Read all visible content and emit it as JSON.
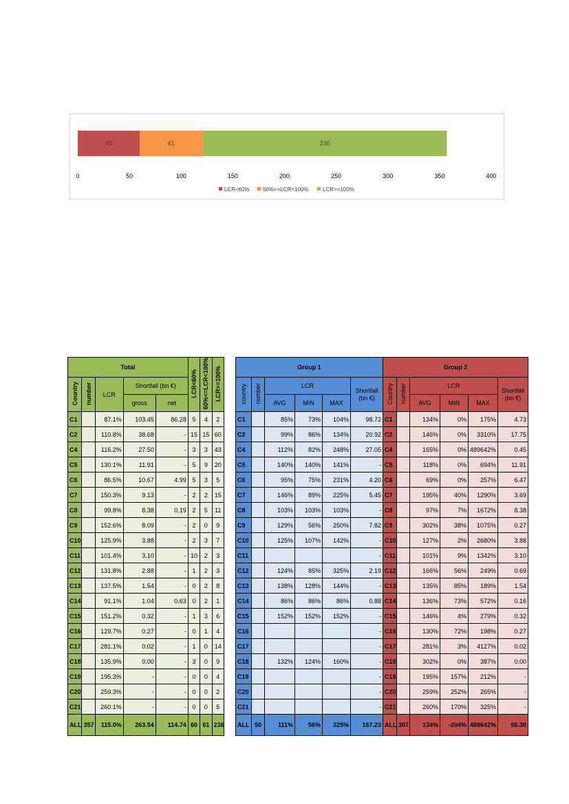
{
  "chart_data": {
    "type": "bar",
    "orientation": "horizontal",
    "stacked": true,
    "series": [
      {
        "name": "LCR<60%",
        "values": [
          60
        ],
        "color": "#c0504d"
      },
      {
        "name": "60%<=LCR<100%",
        "values": [
          61
        ],
        "color": "#f79646"
      },
      {
        "name": "LCR>=100%",
        "values": [
          236
        ],
        "color": "#9bbb59"
      }
    ],
    "xlim": [
      0,
      400
    ],
    "xticks": [
      "0",
      "50",
      "100",
      "150",
      "200",
      "250",
      "300",
      "350",
      "400"
    ],
    "legend_position": "bottom",
    "grid": false
  },
  "total_table": {
    "title": "Total",
    "headers": {
      "country": "Country",
      "number": "number",
      "lcr": "LCR",
      "shortfall": "Shortfall (bn €)",
      "gross": "gross",
      "net": "net",
      "lt60": "LCR<60%",
      "mid": "60%<=LCR<100%",
      "ge100": "LCR>=100%"
    },
    "rows": [
      [
        "C1",
        "",
        "87.1%",
        "103.45",
        "86.28",
        "5",
        "4",
        "2"
      ],
      [
        "C2",
        "",
        "110.8%",
        "38.68",
        "-",
        "15",
        "15",
        "60"
      ],
      [
        "C4",
        "",
        "116.2%",
        "27.50",
        "-",
        "3",
        "3",
        "43"
      ],
      [
        "C5",
        "",
        "130.1%",
        "11.91",
        "-",
        "5",
        "9",
        "20"
      ],
      [
        "C6",
        "",
        "86.5%",
        "10.67",
        "4.99",
        "5",
        "3",
        "5"
      ],
      [
        "C7",
        "",
        "150.3%",
        "9.13",
        "-",
        "2",
        "2",
        "15"
      ],
      [
        "C8",
        "",
        "99.8%",
        "8.38",
        "0.19",
        "2",
        "5",
        "11"
      ],
      [
        "C9",
        "",
        "152.6%",
        "8.09",
        "-",
        "2",
        "0",
        "9"
      ],
      [
        "C10",
        "",
        "125.9%",
        "3.88",
        "-",
        "2",
        "3",
        "7"
      ],
      [
        "C11",
        "",
        "101.4%",
        "3.10",
        "-",
        "10",
        "2",
        "3"
      ],
      [
        "C12",
        "",
        "131.8%",
        "2.88",
        "-",
        "1",
        "2",
        "3"
      ],
      [
        "C13",
        "",
        "137.5%",
        "1.54",
        "-",
        "0",
        "2",
        "8"
      ],
      [
        "C14",
        "",
        "91.1%",
        "1.04",
        "0.63",
        "0",
        "2",
        "1"
      ],
      [
        "C15",
        "",
        "151.2%",
        "0.32",
        "-",
        "1",
        "3",
        "6"
      ],
      [
        "C16",
        "",
        "129.7%",
        "0.27",
        "-",
        "0",
        "1",
        "4"
      ],
      [
        "C17",
        "",
        "281.1%",
        "0.02",
        "-",
        "1",
        "0",
        "14"
      ],
      [
        "C18",
        "",
        "135.9%",
        "0.00",
        "-",
        "3",
        "0",
        "9"
      ],
      [
        "C19",
        "",
        "195.3%",
        "-",
        "-",
        "0",
        "0",
        "4"
      ],
      [
        "C20",
        "",
        "259.3%",
        "-",
        "-",
        "0",
        "0",
        "2"
      ],
      [
        "C21",
        "",
        "260.1%",
        "-",
        "-",
        "0",
        "0",
        "5"
      ]
    ],
    "all_row": [
      "ALL",
      "357",
      "115.0%",
      "263.54",
      "114.74",
      "60",
      "61",
      "236"
    ]
  },
  "group1_table": {
    "title": "Group 1",
    "headers": {
      "country": "country",
      "number": "number",
      "lcr": "LCR",
      "avg": "AVG",
      "min": "MIN",
      "max": "MAX",
      "shortfall": "Shortfall (bn €)"
    },
    "rows": [
      [
        "C1",
        "",
        "85%",
        "73%",
        "104%",
        "98.72"
      ],
      [
        "C2",
        "",
        "99%",
        "86%",
        "134%",
        "20.92"
      ],
      [
        "C4",
        "",
        "112%",
        "82%",
        "248%",
        "27.05"
      ],
      [
        "C5",
        "",
        "140%",
        "140%",
        "141%",
        "-"
      ],
      [
        "C6",
        "",
        "95%",
        "75%",
        "231%",
        "4.20"
      ],
      [
        "C7",
        "",
        "146%",
        "89%",
        "225%",
        "5.45"
      ],
      [
        "C8",
        "",
        "103%",
        "103%",
        "103%",
        "-"
      ],
      [
        "C9",
        "",
        "129%",
        "56%",
        "250%",
        "7.82"
      ],
      [
        "C10",
        "",
        "125%",
        "107%",
        "142%",
        "-"
      ],
      [
        "C11",
        "",
        "",
        "",
        "",
        "-"
      ],
      [
        "C12",
        "",
        "124%",
        "85%",
        "325%",
        "2.19"
      ],
      [
        "C13",
        "",
        "138%",
        "128%",
        "144%",
        "-"
      ],
      [
        "C14",
        "",
        "86%",
        "86%",
        "86%",
        "0.88"
      ],
      [
        "C15",
        "",
        "152%",
        "152%",
        "152%",
        "-"
      ],
      [
        "C16",
        "",
        "",
        "",
        "",
        "-"
      ],
      [
        "C17",
        "",
        "",
        "",
        "",
        "-"
      ],
      [
        "C18",
        "",
        "132%",
        "124%",
        "160%",
        "-"
      ],
      [
        "C19",
        "",
        "",
        "",
        "",
        "-"
      ],
      [
        "C20",
        "",
        "",
        "",
        "",
        "-"
      ],
      [
        "C21",
        "",
        "",
        "",
        "",
        "-"
      ]
    ],
    "all_row": [
      "ALL",
      "50",
      "111%",
      "56%",
      "325%",
      "167.23"
    ]
  },
  "group2_table": {
    "title": "Group 2",
    "headers": {
      "country": "Country",
      "number": "number",
      "lcr": "LCR",
      "avg": "AVG",
      "min": "MIN",
      "max": "MAX",
      "shortfall": "Shortfall (bn €)"
    },
    "rows": [
      [
        "C1",
        "",
        "134%",
        "0%",
        "175%",
        "4.73"
      ],
      [
        "C2",
        "",
        "146%",
        "0%",
        "3310%",
        "17.75"
      ],
      [
        "C4",
        "",
        "165%",
        "0%",
        "489642%",
        "0.45"
      ],
      [
        "C5",
        "",
        "118%",
        "0%",
        "694%",
        "11.91"
      ],
      [
        "C6",
        "",
        "69%",
        "0%",
        "257%",
        "6.47"
      ],
      [
        "C7",
        "",
        "195%",
        "40%",
        "1290%",
        "3.69"
      ],
      [
        "C8",
        "",
        "97%",
        "7%",
        "1672%",
        "8.38"
      ],
      [
        "C9",
        "",
        "302%",
        "38%",
        "1075%",
        "0.27"
      ],
      [
        "C10",
        "",
        "127%",
        "2%",
        "2680%",
        "3.88"
      ],
      [
        "C11",
        "",
        "101%",
        "9%",
        "1342%",
        "3.10"
      ],
      [
        "C12",
        "",
        "166%",
        "56%",
        "249%",
        "0.69"
      ],
      [
        "C13",
        "",
        "135%",
        "85%",
        "189%",
        "1.54"
      ],
      [
        "C14",
        "",
        "136%",
        "73%",
        "572%",
        "0.16"
      ],
      [
        "C15",
        "",
        "146%",
        "4%",
        "279%",
        "0.32"
      ],
      [
        "C16",
        "",
        "130%",
        "72%",
        "198%",
        "0.27"
      ],
      [
        "C17",
        "",
        "281%",
        "3%",
        "4127%",
        "0.02"
      ],
      [
        "C18",
        "",
        "302%",
        "0%",
        "387%",
        "0.00"
      ],
      [
        "C19",
        "",
        "195%",
        "157%",
        "212%",
        "-"
      ],
      [
        "C20",
        "",
        "259%",
        "252%",
        "265%",
        "-"
      ],
      [
        "C21",
        "",
        "260%",
        "170%",
        "325%",
        "-"
      ]
    ],
    "all_row": [
      "ALL",
      "307",
      "134%",
      "-204%",
      "489642%",
      "96.30"
    ]
  }
}
